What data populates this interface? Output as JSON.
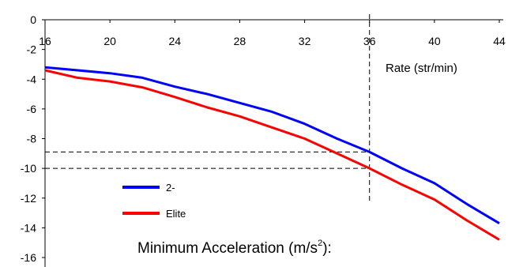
{
  "chart_data": {
    "type": "line",
    "title": "",
    "xlabel": "Rate (str/min)",
    "ylabel_text": "Minimum Acceleration (m/s",
    "ylabel_sup": "2",
    "ylabel_tail": "):",
    "xlim": [
      16,
      44
    ],
    "ylim": [
      -16,
      0
    ],
    "x_ticks": [
      "16",
      "20",
      "24",
      "28",
      "32",
      "36",
      "40",
      "44"
    ],
    "y_ticks": [
      "0",
      "-2",
      "-4",
      "-6",
      "-8",
      "-10",
      "-12",
      "-14",
      "-16"
    ],
    "grid": false,
    "legend_position": "bottom-left",
    "series": [
      {
        "name": "2-",
        "color": "#0000ff",
        "x": [
          16,
          20,
          22,
          24,
          26,
          28,
          30,
          32,
          34,
          36,
          38,
          40,
          42,
          44
        ],
        "y": [
          -3.2,
          -3.6,
          -3.9,
          -4.5,
          -5.0,
          -5.6,
          -6.2,
          -7.0,
          -8.0,
          -8.9,
          -10.0,
          -11.0,
          -12.4,
          -13.7
        ]
      },
      {
        "name": "Elite",
        "color": "#ff0000",
        "x": [
          16,
          18,
          20,
          22,
          24,
          26,
          28,
          30,
          32,
          34,
          36,
          38,
          40,
          42,
          44
        ],
        "y": [
          -3.4,
          -3.9,
          -4.15,
          -4.55,
          -5.2,
          -5.9,
          -6.5,
          -7.25,
          -8.0,
          -9.0,
          -10.0,
          -11.1,
          -12.1,
          -13.5,
          -14.8
        ]
      }
    ],
    "reference_lines": {
      "color": "#000000",
      "vertical_x": 36,
      "horizontal_y": [
        -8.9,
        -10.0
      ]
    }
  }
}
